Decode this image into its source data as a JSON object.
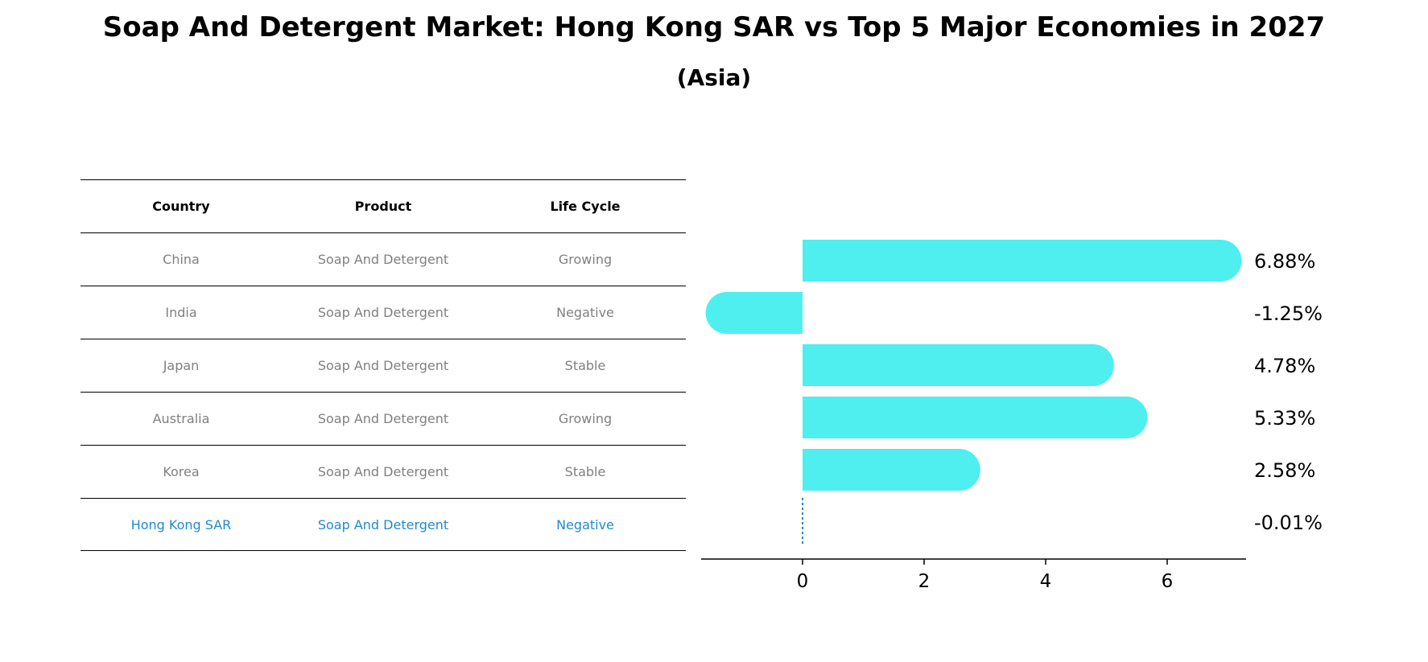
{
  "title": "Soap And Detergent Market: Hong Kong SAR vs Top 5 Major Economies in 2027",
  "subtitle": "(Asia)",
  "table": {
    "headers": [
      "Country",
      "Product",
      "Life Cycle"
    ],
    "rows": [
      [
        "China",
        "Soap And Detergent",
        "Growing"
      ],
      [
        "India",
        "Soap And Detergent",
        "Negative"
      ],
      [
        "Japan",
        "Soap And Detergent",
        "Stable"
      ],
      [
        "Australia",
        "Soap And Detergent",
        "Growing"
      ],
      [
        "Korea",
        "Soap And Detergent",
        "Stable"
      ],
      [
        "Hong Kong SAR",
        "Soap And Detergent",
        "Negative"
      ]
    ],
    "highlight_row": 5
  },
  "colors": {
    "bar": "#4eefee",
    "highlight": "#1f8ad3",
    "muted_text": "#808080"
  },
  "chart_data": {
    "type": "bar",
    "orientation": "horizontal",
    "categories": [
      "China",
      "India",
      "Japan",
      "Australia",
      "Korea",
      "Hong Kong SAR"
    ],
    "values": [
      6.88,
      -1.25,
      4.78,
      5.33,
      2.58,
      -0.01
    ],
    "value_labels": [
      "6.88%",
      "-1.25%",
      "4.78%",
      "5.33%",
      "2.58%",
      "-0.01%"
    ],
    "xticks": [
      0,
      2,
      4,
      6
    ],
    "xlim": [
      -1.65,
      7.3
    ],
    "xlabel": "",
    "ylabel": ""
  }
}
